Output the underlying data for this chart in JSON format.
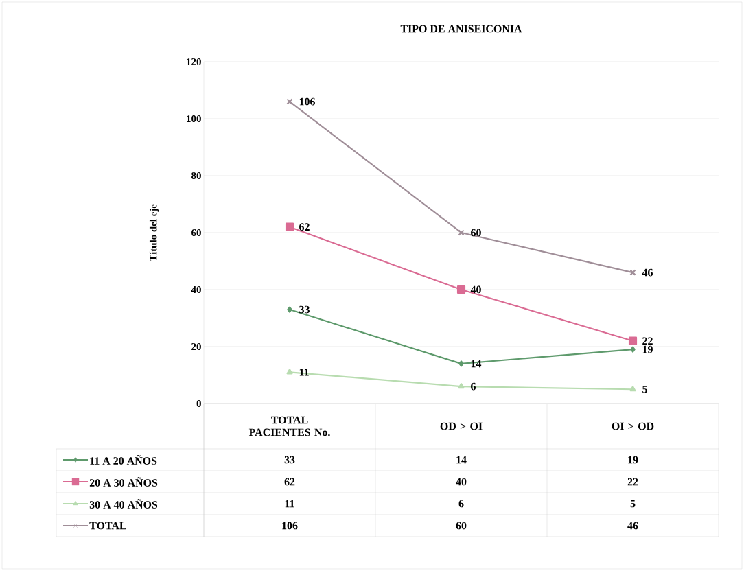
{
  "chart_data": {
    "type": "line",
    "title": "TIPO DE ANISEICONIA",
    "ylabel": "Título del eje",
    "categories": [
      "TOTAL PACIENTES No.",
      "OD > OI",
      "OI > OD"
    ],
    "series": [
      {
        "name": "11 A 20 AÑOS",
        "color": "#5e9a6c",
        "values": [
          33,
          14,
          19
        ],
        "value_labels": [
          "33",
          "14",
          "19"
        ],
        "marker": "diamond"
      },
      {
        "name": "20 A 30 AÑOS",
        "color": "#da6b93",
        "values": [
          62,
          40,
          22
        ],
        "value_labels": [
          "62",
          "40",
          "22"
        ],
        "marker": "square"
      },
      {
        "name": "30 A 40 AÑOS",
        "color": "#b8dcb0",
        "values": [
          11,
          6,
          5
        ],
        "value_labels": [
          "11",
          "6",
          "5"
        ],
        "marker": "triangle"
      },
      {
        "name": "TOTAL",
        "color": "#a08e98",
        "values": [
          106,
          60,
          46
        ],
        "value_labels": [
          "106",
          "60",
          "46"
        ],
        "marker": "cross"
      }
    ],
    "ylim": [
      0,
      120
    ],
    "yticks": [
      0,
      20,
      40,
      60,
      80,
      100,
      120
    ],
    "grid": "y",
    "legend": "bottom"
  }
}
